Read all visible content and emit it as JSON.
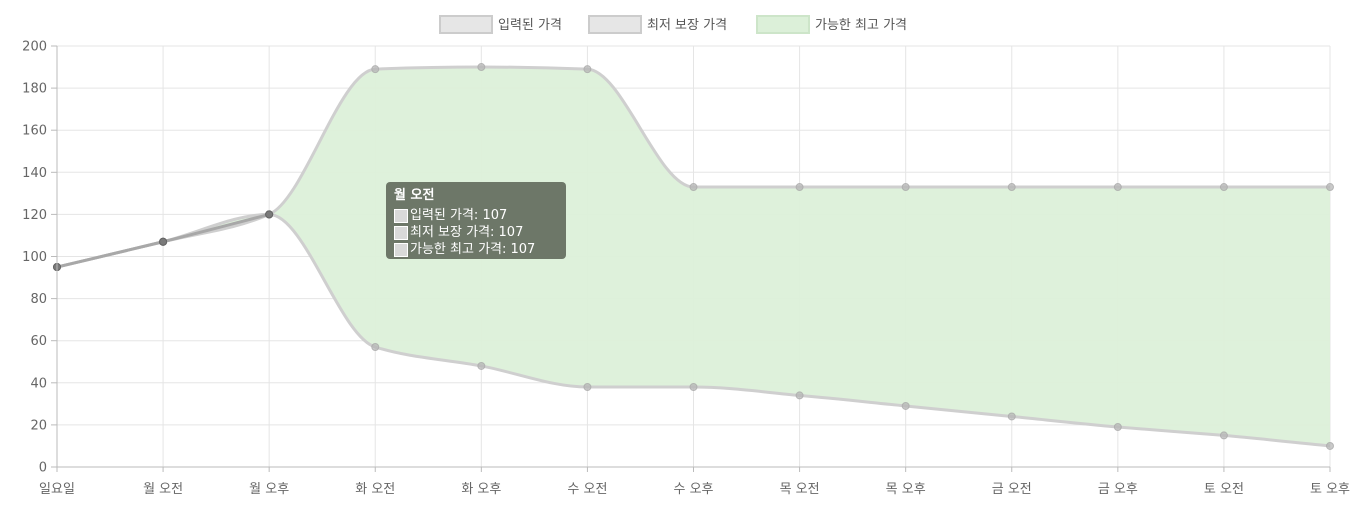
{
  "chart_data": {
    "type": "line",
    "categories": [
      "일요일",
      "월 오전",
      "월 오후",
      "화 오전",
      "화 오후",
      "수 오전",
      "수 오후",
      "목 오전",
      "목 오후",
      "금 오전",
      "금 오후",
      "토 오전",
      "토 오후"
    ],
    "ylim": [
      0,
      200
    ],
    "yticks": [
      0,
      20,
      40,
      60,
      80,
      100,
      120,
      140,
      160,
      180,
      200
    ],
    "grid": true,
    "legend_position": "top",
    "series": [
      {
        "name": "입력된 가격",
        "values": [
          95,
          107,
          120,
          null,
          null,
          null,
          null,
          null,
          null,
          null,
          null,
          null,
          null
        ],
        "color": "#e6e6e6"
      },
      {
        "name": "최저 보장 가격",
        "values": [
          95,
          107,
          120,
          57,
          48,
          38,
          38,
          34,
          29,
          24,
          19,
          15,
          10
        ],
        "color": "#e6e6e6"
      },
      {
        "name": "가능한 최고 가격",
        "values": [
          95,
          107,
          120,
          189,
          190,
          189,
          133,
          133,
          133,
          133,
          133,
          133,
          133
        ],
        "color": "#dcf0d9"
      }
    ],
    "tooltip": {
      "title": "월 오전",
      "lines": [
        "입력된 가격: 107",
        "최저 보장 가격: 107",
        "가능한 최고 가격: 107"
      ]
    }
  }
}
